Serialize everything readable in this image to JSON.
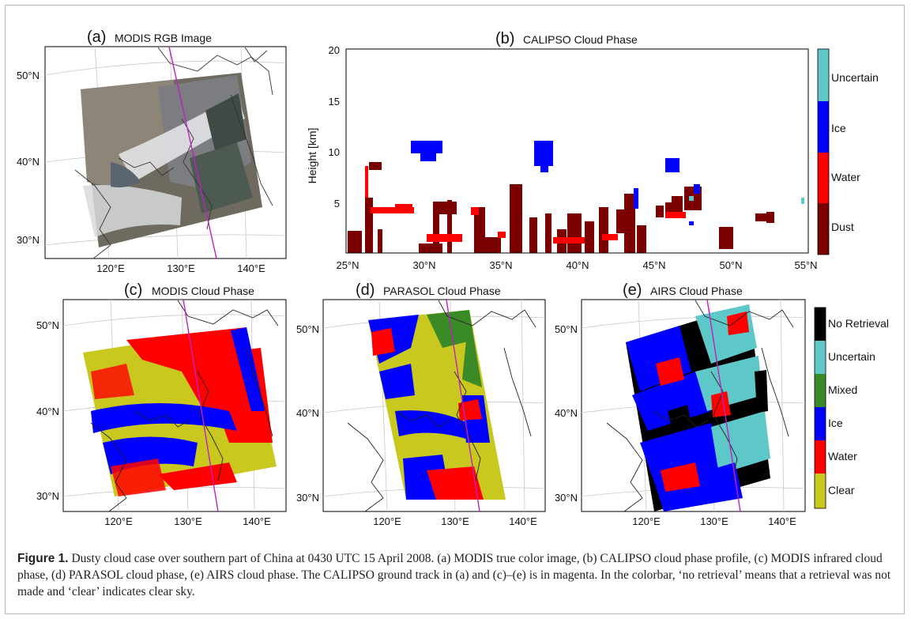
{
  "figure": {
    "panel_a": {
      "letter": "(a)",
      "title": "MODIS RGB Image",
      "lat_ticks": [
        "50°N",
        "40°N",
        "30°N"
      ],
      "lon_ticks": [
        "120°E",
        "130°E",
        "140°E"
      ]
    },
    "panel_b": {
      "letter": "(b)",
      "title": "CALIPSO Cloud Phase",
      "ylabel": "Height [km]",
      "y_ticks": [
        "5",
        "10",
        "15",
        "20"
      ],
      "x_ticks": [
        "25°N",
        "30°N",
        "35°N",
        "40°N",
        "45°N",
        "50°N",
        "55°N"
      ],
      "colorbar": {
        "labels": [
          "Uncertain",
          "Ice",
          "Water",
          "Dust"
        ],
        "colors": [
          "#5ec7c7",
          "#0000ff",
          "#ff0000",
          "#7a0000"
        ]
      }
    },
    "panel_c": {
      "letter": "(c)",
      "title": "MODIS Cloud Phase",
      "lat_ticks": [
        "50°N",
        "40°N",
        "30°N"
      ],
      "lon_ticks": [
        "120°E",
        "130°E",
        "140°E"
      ]
    },
    "panel_d": {
      "letter": "(d)",
      "title": "PARASOL Cloud Phase",
      "lat_ticks": [
        "50°N",
        "40°N",
        "30°N"
      ],
      "lon_ticks": [
        "120°E",
        "130°E",
        "140°E"
      ]
    },
    "panel_e": {
      "letter": "(e)",
      "title": "AIRS Cloud Phase",
      "lat_ticks": [
        "50°N",
        "40°N",
        "30°N"
      ],
      "lon_ticks": [
        "120°E",
        "130°E",
        "140°E"
      ]
    },
    "colorbar_bottom": {
      "labels": [
        "No Retrieval",
        "Uncertain",
        "Mixed",
        "Ice",
        "Water",
        "Clear"
      ],
      "colors": [
        "#000000",
        "#5ec7c7",
        "#3a8a28",
        "#0000ff",
        "#ff0000",
        "#c8c81e"
      ]
    },
    "track_color": "#c020c0"
  },
  "caption": {
    "label": "Figure 1.",
    "text": " Dusty cloud case over southern part of China at 0430 UTC 15 April 2008. (a) MODIS true color image, (b) CALIPSO cloud phase profile, (c) MODIS infrared cloud phase, (d) PARASOL cloud phase, (e) AIRS cloud phase. The CALIPSO ground track in (a) and (c)–(e) is in magenta. In the colorbar, ‘no retrieval’ means that a retrieval was not made and ‘clear’ indicates clear sky."
  }
}
